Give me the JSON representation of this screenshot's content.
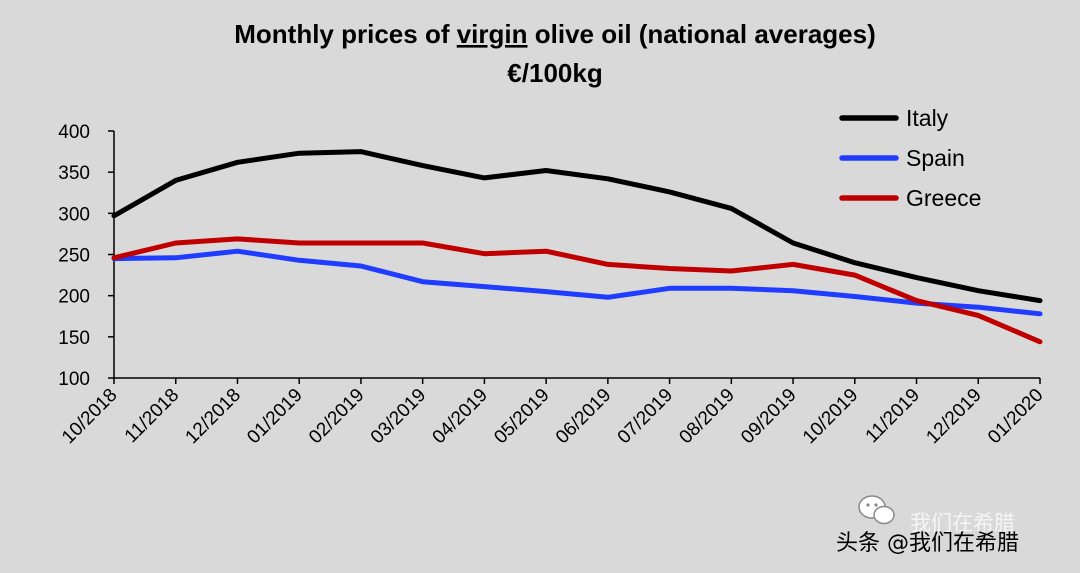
{
  "chart_data": {
    "type": "line",
    "title_parts": {
      "before": "Monthly prices of ",
      "underlined": "virgin",
      "after": " olive oil (national averages)"
    },
    "subtitle": "€/100kg",
    "categories": [
      "10/2018",
      "11/2018",
      "12/2018",
      "01/2019",
      "02/2019",
      "03/2019",
      "04/2019",
      "05/2019",
      "06/2019",
      "07/2019",
      "08/2019",
      "09/2019",
      "10/2019",
      "11/2019",
      "12/2019",
      "01/2020"
    ],
    "yticks": [
      "100",
      "150",
      "200",
      "250",
      "300",
      "350",
      "400"
    ],
    "ylim": [
      100,
      400
    ],
    "grid": false,
    "legend_position": "top-right",
    "series": [
      {
        "name": "Italy",
        "color": "#000000",
        "values": [
          297,
          340,
          362,
          373,
          375,
          358,
          343,
          352,
          342,
          326,
          306,
          264,
          240,
          222,
          206,
          194
        ]
      },
      {
        "name": "Spain",
        "color": "#1f3cff",
        "values": [
          245,
          246,
          254,
          243,
          236,
          217,
          211,
          205,
          198,
          209,
          209,
          206,
          199,
          191,
          186,
          178
        ]
      },
      {
        "name": "Greece",
        "color": "#c00000",
        "values": [
          246,
          264,
          269,
          264,
          264,
          264,
          251,
          254,
          238,
          233,
          230,
          238,
          225,
          194,
          176,
          144
        ]
      }
    ]
  },
  "watermark": {
    "faint_text": "我们在希腊",
    "text": "头条 @我们在希腊",
    "icon": "wechat-icon"
  }
}
